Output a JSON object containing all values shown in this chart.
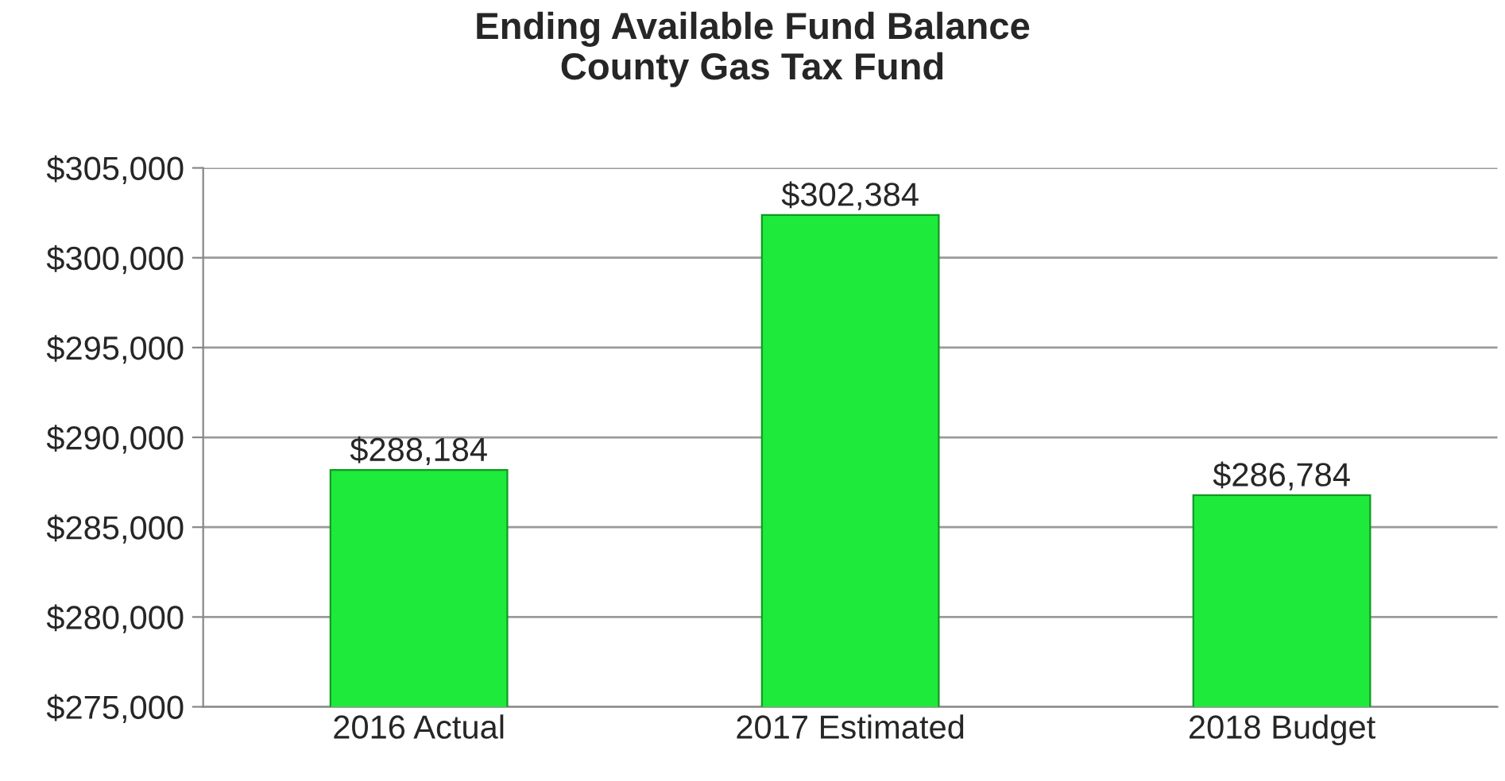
{
  "chart_data": {
    "type": "bar",
    "title": "Ending Available Fund Balance\nCounty Gas Tax Fund",
    "categories": [
      "2016 Actual",
      "2017 Estimated",
      "2018 Budget"
    ],
    "values": [
      288184,
      302384,
      286784
    ],
    "value_labels": [
      "$288,184",
      "$302,384",
      "$286,784"
    ],
    "color": "#1eea3c",
    "ylim": [
      275000,
      305000
    ],
    "yticks": [
      {
        "value": 275000,
        "label": "$275,000"
      },
      {
        "value": 280000,
        "label": "$280,000"
      },
      {
        "value": 285000,
        "label": "$285,000"
      },
      {
        "value": 290000,
        "label": "$290,000"
      },
      {
        "value": 295000,
        "label": "$295,000"
      },
      {
        "value": 300000,
        "label": "$300,000"
      },
      {
        "value": 305000,
        "label": "$305,000"
      }
    ],
    "grid": "y",
    "legend": false
  }
}
